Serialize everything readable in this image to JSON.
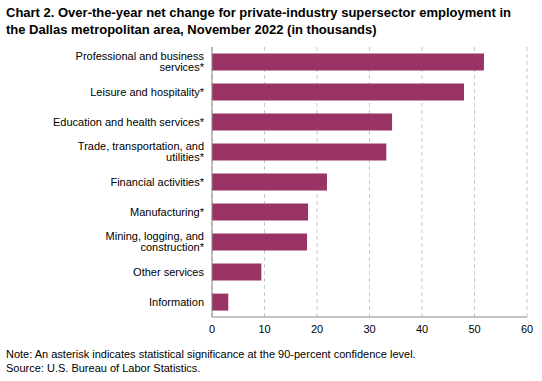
{
  "chart_data": {
    "type": "bar",
    "title": "Chart 2. Over-the-year net change for private-industry supersector employment in the Dallas metropolitan area, November 2022 (in thousands)",
    "orientation": "horizontal",
    "categories": [
      "Professional and business services*",
      "Leisure and hospitality*",
      "Education and health services*",
      "Trade, transportation, and utilities*",
      "Financial activities*",
      "Manufacturing*",
      "Mining, logging, and construction*",
      "Other services",
      "Information"
    ],
    "values": [
      51.8,
      48,
      34.3,
      33.2,
      21.9,
      18.3,
      18.1,
      9.4,
      3.1
    ],
    "color": "#993366",
    "xlim": [
      0,
      60
    ],
    "xticks": [
      0,
      10,
      20,
      30,
      40,
      50,
      60
    ],
    "grid": true,
    "note": "Note: An asterisk indicates statistical significance at the 90-percent confidence level.",
    "source": "Source: U.S. Bureau of Labor Statistics."
  }
}
